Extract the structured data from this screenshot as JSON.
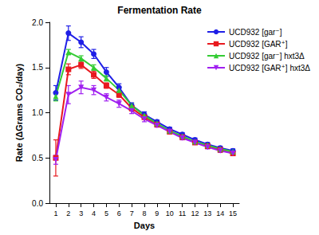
{
  "chart_data": {
    "type": "line",
    "title": "Fermentation Rate",
    "x_label": "Days",
    "y_label": "Rate (ΔGrams CO₂/day)",
    "x": [
      1,
      2,
      3,
      4,
      5,
      6,
      7,
      8,
      9,
      10,
      11,
      12,
      13,
      14,
      15
    ],
    "xlim": [
      0.5,
      15.5
    ],
    "xticks": [
      1,
      2,
      3,
      4,
      5,
      6,
      7,
      8,
      9,
      10,
      11,
      12,
      13,
      14,
      15
    ],
    "ylim": [
      0,
      2
    ],
    "yticks": [
      {
        "value": 0,
        "label": "0.0"
      },
      0.5,
      {
        "value": 1,
        "label": "1.0"
      },
      1.5,
      {
        "value": 2,
        "label": "2.0"
      }
    ],
    "grid": false,
    "legend": "top-right",
    "series": [
      {
        "name": "UCD932 [gar⁻]",
        "color": "#1f1fe6",
        "marker": "circle",
        "values": [
          1.22,
          1.88,
          1.78,
          1.65,
          1.45,
          1.28,
          1.08,
          0.98,
          0.9,
          0.82,
          0.76,
          0.7,
          0.65,
          0.61,
          0.58
        ],
        "errors": [
          0.08,
          0.08,
          0.06,
          0.05,
          0.05,
          0.04,
          0.03,
          0.03,
          0.02,
          0.02,
          0.02,
          0.02,
          0.02,
          0.02,
          0.02
        ]
      },
      {
        "name": "UCD932 [GAR⁺]",
        "color": "#e8191e",
        "marker": "square",
        "values": [
          0.5,
          1.48,
          1.53,
          1.42,
          1.3,
          1.2,
          1.05,
          0.95,
          0.87,
          0.79,
          0.73,
          0.67,
          0.63,
          0.59,
          0.55
        ],
        "errors": [
          0.2,
          0.06,
          0.04,
          0.04,
          0.03,
          0.03,
          0.03,
          0.02,
          0.02,
          0.02,
          0.02,
          0.02,
          0.02,
          0.02,
          0.02
        ]
      },
      {
        "name": "UCD932 [gar⁻] hxt3Δ",
        "color": "#33cc33",
        "marker": "triangle",
        "values": [
          1.18,
          1.67,
          1.6,
          1.5,
          1.38,
          1.25,
          1.08,
          0.97,
          0.88,
          0.8,
          0.74,
          0.68,
          0.64,
          0.6,
          0.57
        ],
        "errors": [
          0.05,
          0.03,
          0.03,
          0.03,
          0.03,
          0.03,
          0.02,
          0.02,
          0.02,
          0.02,
          0.02,
          0.02,
          0.02,
          0.02,
          0.02
        ]
      },
      {
        "name": "UCD932 [GAR⁺] hxt3Δ",
        "color": "#a020f0",
        "marker": "triangle-down",
        "values": [
          0.48,
          1.2,
          1.28,
          1.25,
          1.17,
          1.1,
          1.02,
          0.93,
          0.86,
          0.79,
          0.72,
          0.67,
          0.62,
          0.58,
          0.55
        ],
        "errors": [
          0.05,
          0.1,
          0.07,
          0.05,
          0.04,
          0.04,
          0.03,
          0.03,
          0.02,
          0.02,
          0.02,
          0.02,
          0.02,
          0.02,
          0.02
        ]
      }
    ]
  }
}
